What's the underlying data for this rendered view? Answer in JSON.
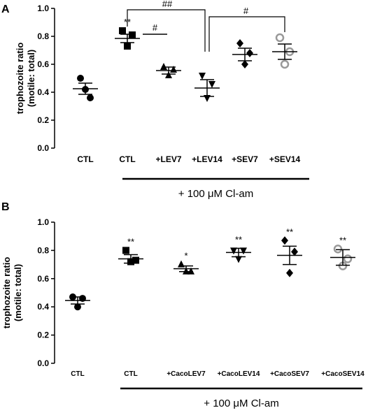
{
  "chart_data": [
    {
      "panel": "A",
      "type": "scatter",
      "ylabel": [
        "trophozoite ratio",
        "(motile: total)"
      ],
      "ylim": [
        0.0,
        1.0
      ],
      "yticks": [
        "0.0",
        "0.2",
        "0.4",
        "0.6",
        "0.8",
        "1.0"
      ],
      "categories": [
        "CTL",
        "CTL",
        "+LEV7",
        "+LEV14",
        "+SEV7",
        "+SEV14"
      ],
      "treatment_label": "+ 100 μM Cl-am",
      "groups": [
        {
          "category": "CTL",
          "marker": "circle",
          "points": [
            0.5,
            0.36,
            0.42
          ],
          "mean": 0.425,
          "err": 0.04,
          "sig": ""
        },
        {
          "category": "CTL",
          "marker": "square",
          "points": [
            0.84,
            0.81,
            0.73
          ],
          "mean": 0.785,
          "err": 0.03,
          "sig": "**"
        },
        {
          "category": "+LEV7",
          "marker": "triangle-up",
          "points": [
            0.58,
            0.56,
            0.52
          ],
          "mean": 0.555,
          "err": 0.025,
          "sig": ""
        },
        {
          "category": "+LEV14",
          "marker": "triangle-down",
          "points": [
            0.52,
            0.46,
            0.36
          ],
          "mean": 0.43,
          "err": 0.06,
          "sig": ""
        },
        {
          "category": "+SEV7",
          "marker": "diamond",
          "points": [
            0.75,
            0.68,
            0.6
          ],
          "mean": 0.67,
          "err": 0.045,
          "sig": ""
        },
        {
          "category": "+SEV14",
          "marker": "circle-open",
          "points": [
            0.79,
            0.69,
            0.6
          ],
          "mean": 0.69,
          "err": 0.055,
          "sig": ""
        }
      ],
      "brackets": [
        {
          "label": "##",
          "from": 1,
          "to": 3
        },
        {
          "label": "#",
          "from": 3,
          "to": 5
        },
        {
          "label": "#",
          "from": 1,
          "to": 2
        }
      ]
    },
    {
      "panel": "B",
      "type": "scatter",
      "ylabel": [
        "trophozoite ratio",
        "(motile: total)"
      ],
      "ylim": [
        0.0,
        1.0
      ],
      "yticks": [
        "0.0",
        "0.2",
        "0.4",
        "0.6",
        "0.8",
        "1.0"
      ],
      "categories": [
        "CTL",
        "CTL",
        "+CacoLEV7",
        "+CacoLEV14",
        "+CacoSEV7",
        "+CacoSEV14"
      ],
      "treatment_label": "+ 100 μM Cl-am",
      "groups": [
        {
          "category": "CTL",
          "marker": "circle",
          "points": [
            0.47,
            0.46,
            0.4
          ],
          "mean": 0.445,
          "err": 0.025,
          "sig": ""
        },
        {
          "category": "CTL",
          "marker": "square",
          "points": [
            0.8,
            0.73,
            0.72
          ],
          "mean": 0.74,
          "err": 0.03,
          "sig": "**"
        },
        {
          "category": "+CacoLEV7",
          "marker": "triangle-up",
          "points": [
            0.7,
            0.65,
            0.65
          ],
          "mean": 0.67,
          "err": 0.02,
          "sig": "*"
        },
        {
          "category": "+CacoLEV14",
          "marker": "triangle-down",
          "points": [
            0.8,
            0.8,
            0.74
          ],
          "mean": 0.785,
          "err": 0.03,
          "sig": "**"
        },
        {
          "category": "+CacoSEV7",
          "marker": "diamond",
          "points": [
            0.87,
            0.79,
            0.64
          ],
          "mean": 0.765,
          "err": 0.065,
          "sig": "**"
        },
        {
          "category": "+CacoSEV14",
          "marker": "circle-open",
          "points": [
            0.81,
            0.74,
            0.69
          ],
          "mean": 0.75,
          "err": 0.055,
          "sig": "**"
        }
      ],
      "brackets": []
    }
  ]
}
